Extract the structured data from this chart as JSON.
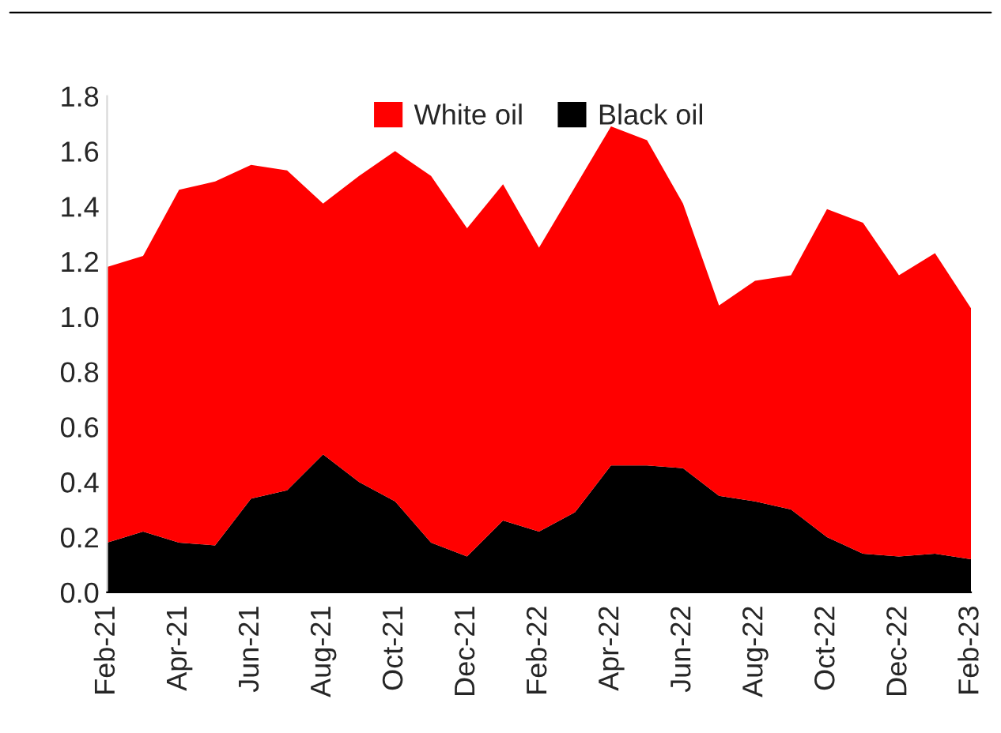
{
  "chart_data": {
    "type": "area",
    "stacked": true,
    "categories": [
      "Feb-21",
      null,
      "Apr-21",
      null,
      "Jun-21",
      null,
      "Aug-21",
      null,
      "Oct-21",
      null,
      "Dec-21",
      null,
      "Feb-22",
      null,
      "Apr-22",
      null,
      "Jun-22",
      null,
      "Aug-22",
      null,
      "Oct-22",
      null,
      "Dec-22",
      null,
      "Feb-23"
    ],
    "series": [
      {
        "name": "Black oil",
        "color": "#000000",
        "values": [
          0.18,
          0.22,
          0.18,
          0.17,
          0.34,
          0.37,
          0.5,
          0.4,
          0.33,
          0.18,
          0.13,
          0.26,
          0.22,
          0.29,
          0.46,
          0.46,
          0.45,
          0.35,
          0.33,
          0.3,
          0.2,
          0.14,
          0.13,
          0.14,
          0.12
        ]
      },
      {
        "name": "White oil",
        "color": "#ff0000",
        "values": [
          1.0,
          1.0,
          1.28,
          1.32,
          1.21,
          1.16,
          0.91,
          1.11,
          1.27,
          1.33,
          1.19,
          1.22,
          1.03,
          1.18,
          1.23,
          1.18,
          0.96,
          0.69,
          0.8,
          0.85,
          1.19,
          1.2,
          1.02,
          1.09,
          0.91
        ]
      }
    ],
    "ylim": [
      0,
      1.8
    ],
    "yticks": [
      {
        "value": 0,
        "label": "0.0"
      },
      {
        "value": 0.2,
        "label": "0.2"
      },
      {
        "value": 0.4,
        "label": "0.4"
      },
      {
        "value": 0.6,
        "label": "0.6"
      },
      {
        "value": 0.8,
        "label": "0.8"
      },
      {
        "value": 1.0,
        "label": "1.0"
      },
      {
        "value": 1.2,
        "label": "1.2"
      },
      {
        "value": 1.4,
        "label": "1.4"
      },
      {
        "value": 1.6,
        "label": "1.6"
      },
      {
        "value": 1.8,
        "label": "1.8"
      }
    ],
    "grid": false,
    "legend": "top"
  }
}
